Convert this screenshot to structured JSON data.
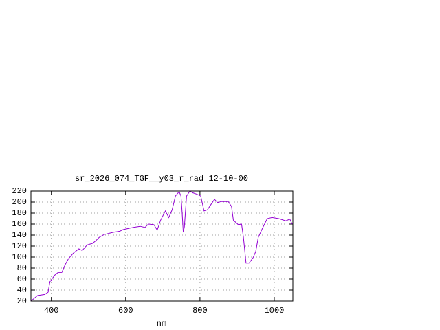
{
  "chart_data": {
    "type": "line",
    "title": "sr_2026_074_TGF__y03_r_rad 12-10-00",
    "xlabel": "nm",
    "xlim": [
      345,
      1050
    ],
    "ylim": [
      20,
      220
    ],
    "xticks": [
      400,
      600,
      800,
      1000
    ],
    "yticks": [
      20,
      40,
      60,
      80,
      100,
      120,
      140,
      160,
      180,
      200,
      220
    ],
    "grid": true,
    "series": [
      {
        "color": "#9400d3",
        "x": [
          345,
          363,
          382,
          391,
          396,
          409,
          418,
          428,
          437,
          446,
          459,
          474,
          483,
          496,
          511,
          520,
          529,
          542,
          566,
          584,
          593,
          621,
          639,
          652,
          661,
          676,
          685,
          694,
          707,
          716,
          725,
          734,
          744,
          749,
          752,
          755,
          758,
          764,
          773,
          780,
          793,
          802,
          811,
          820,
          830,
          839,
          848,
          857,
          876,
          885,
          890,
          903,
          912,
          917,
          924,
          932,
          943,
          950,
          957,
          970,
          981,
          994,
          1012,
          1031,
          1042,
          1048
        ],
        "values": [
          20,
          30,
          32,
          36,
          55,
          67,
          72,
          72,
          86,
          97,
          107,
          115,
          112,
          122,
          125,
          130,
          136,
          141,
          145,
          147,
          150,
          154,
          156,
          154,
          160,
          159,
          149,
          167,
          184,
          172,
          186,
          211,
          219,
          211,
          180,
          145,
          155,
          211,
          220,
          217,
          214,
          211,
          184,
          186,
          196,
          205,
          199,
          201,
          201,
          192,
          167,
          159,
          160,
          136,
          89,
          89,
          99,
          110,
          136,
          155,
          170,
          172,
          170,
          166,
          169,
          160
        ]
      }
    ]
  }
}
